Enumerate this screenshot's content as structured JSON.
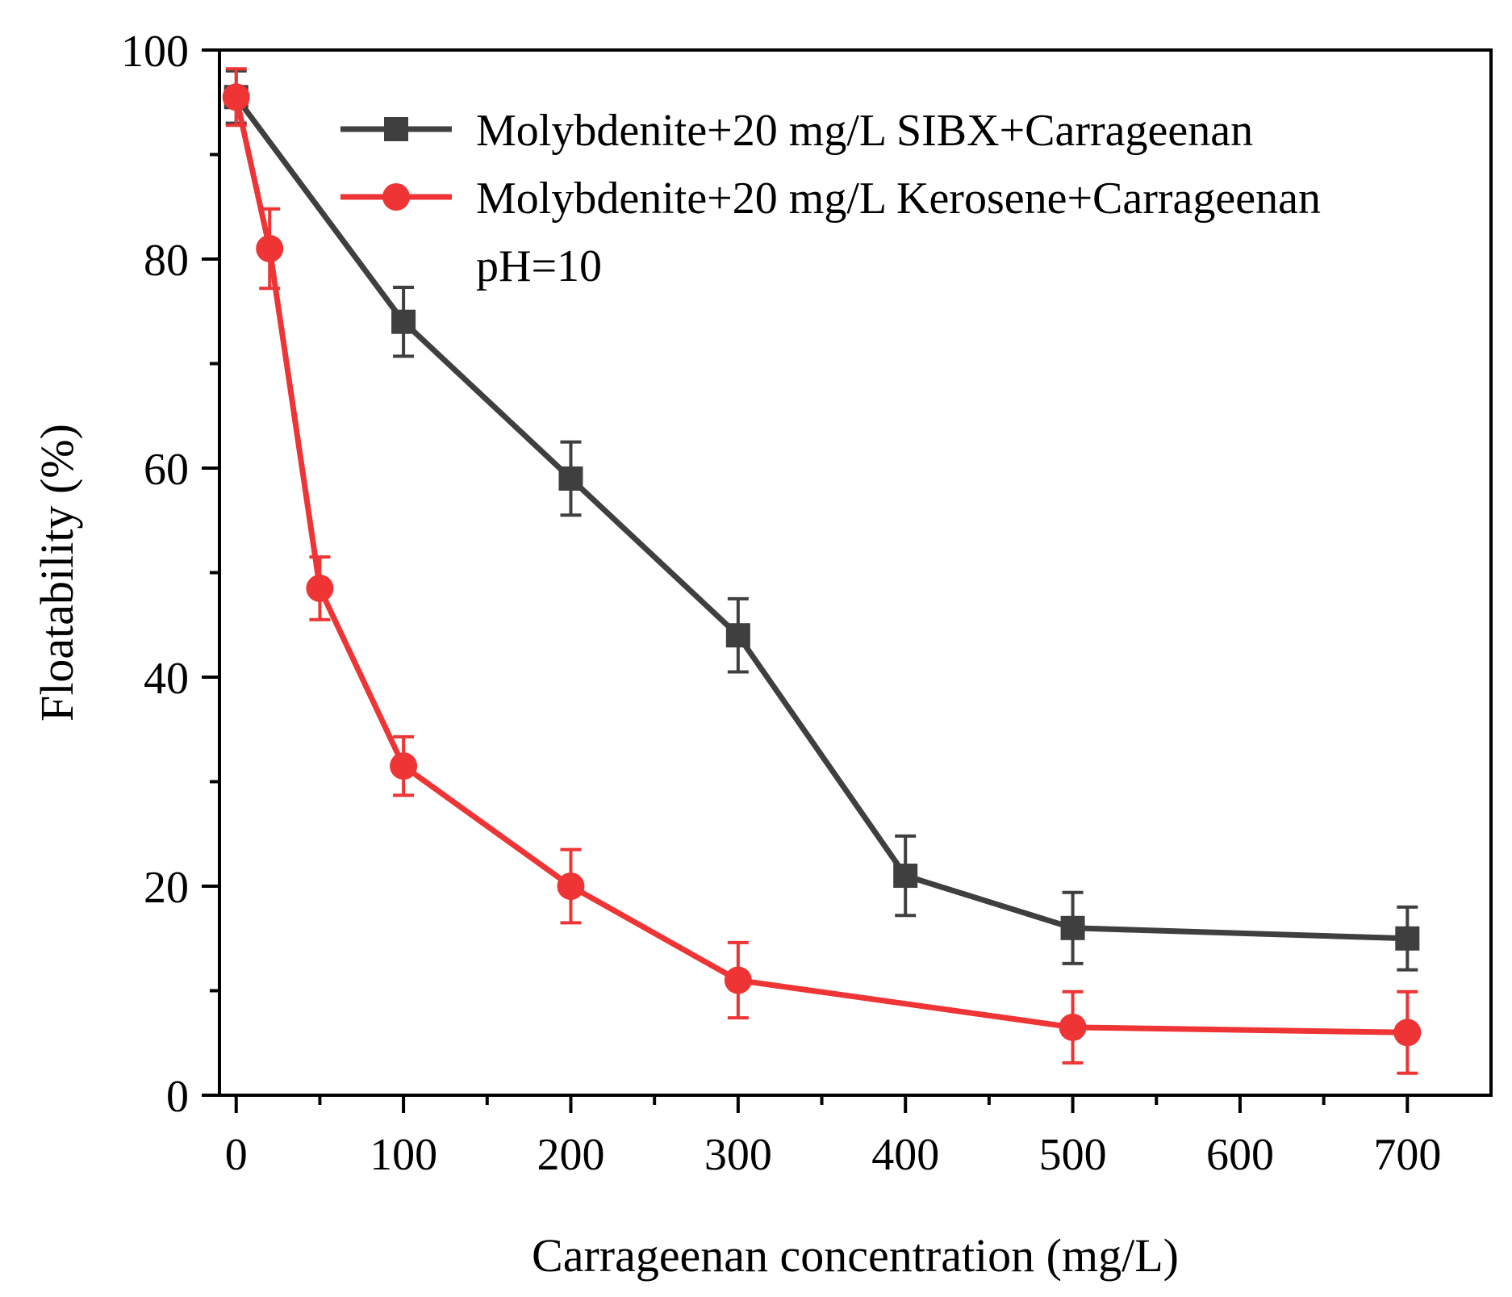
{
  "chart_data": {
    "type": "line",
    "title": "",
    "xlabel": "Carrageenan concentration (mg/L)",
    "ylabel": "Floatability (%)",
    "xlim": [
      -10,
      750
    ],
    "ylim": [
      0,
      100
    ],
    "xticks": [
      0,
      100,
      200,
      300,
      400,
      500,
      600,
      700
    ],
    "yticks": [
      0,
      20,
      40,
      60,
      80,
      100
    ],
    "xtick_labels": [
      "0",
      "100",
      "200",
      "300",
      "400",
      "500",
      "600",
      "700"
    ],
    "ytick_labels": [
      "0",
      "20",
      "40",
      "60",
      "80",
      "100"
    ],
    "legend_position": "top-right",
    "annotation": "pH=10",
    "grid": false,
    "series": [
      {
        "name": "Molybdenite+20 mg/L SIBX+Carrageenan",
        "color": "#3f3f3f",
        "marker": "square",
        "x": [
          0,
          100,
          200,
          300,
          400,
          500,
          700
        ],
        "y": [
          95.5,
          74,
          59,
          44,
          21,
          16,
          15
        ],
        "err": [
          2.5,
          3.3,
          3.5,
          3.5,
          3.8,
          3.4,
          3.0
        ]
      },
      {
        "name": "Molybdenite+20 mg/L Kerosene+Carrageenan",
        "color": "#ee3434",
        "marker": "circle",
        "x": [
          0,
          20,
          50,
          100,
          200,
          300,
          500,
          700
        ],
        "y": [
          95.5,
          81,
          48.5,
          31.5,
          20,
          11,
          6.5,
          6
        ],
        "err": [
          2.7,
          3.8,
          3.0,
          2.8,
          3.5,
          3.6,
          3.4,
          3.9
        ]
      }
    ]
  }
}
